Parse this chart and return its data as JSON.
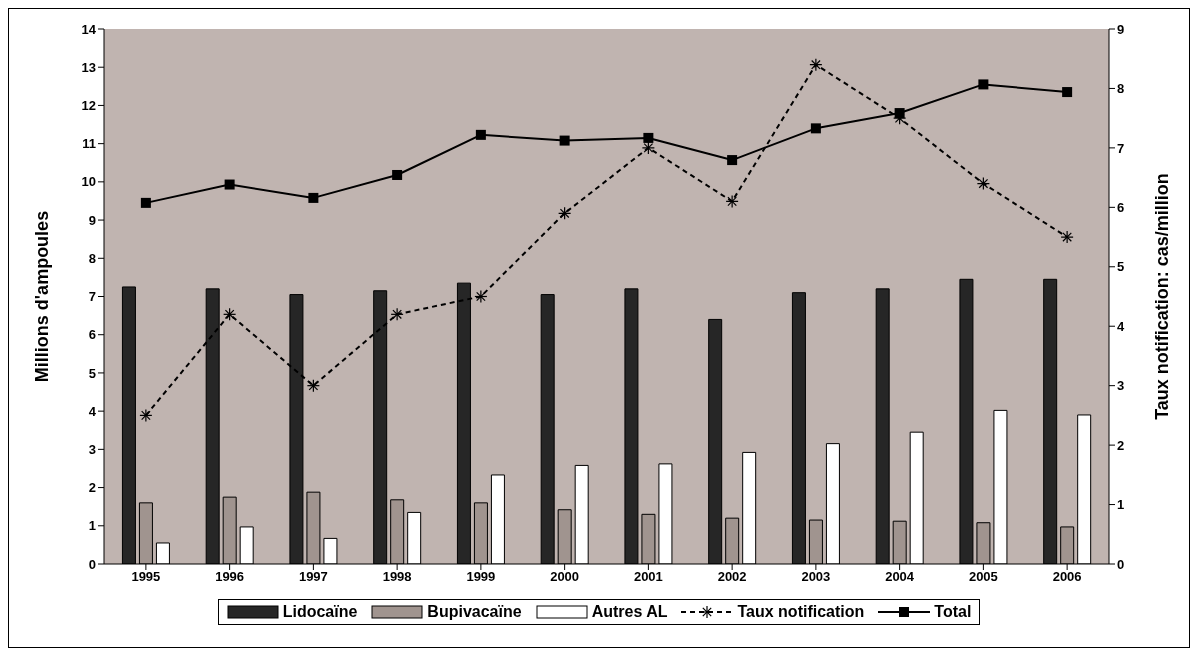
{
  "chart_data": {
    "type": "bar",
    "categories": [
      "1995",
      "1996",
      "1997",
      "1998",
      "1999",
      "2000",
      "2001",
      "2002",
      "2003",
      "2004",
      "2005",
      "2006"
    ],
    "ylabel": "Millions d'ampoules",
    "y2label": "Taux notification: cas/million",
    "ylim": [
      0,
      14
    ],
    "yticks": [
      0,
      1,
      2,
      3,
      4,
      5,
      6,
      7,
      8,
      9,
      10,
      11,
      12,
      13,
      14
    ],
    "y2lim": [
      0,
      9
    ],
    "y2ticks": [
      0,
      1,
      2,
      3,
      4,
      5,
      6,
      7,
      8,
      9
    ],
    "grid": false,
    "legend": "bottom",
    "series": [
      {
        "name": "Lidocaïne",
        "color": "#262626",
        "values": [
          7.25,
          7.2,
          7.05,
          7.15,
          7.35,
          7.05,
          7.2,
          6.4,
          7.1,
          7.2,
          7.45,
          7.45
        ]
      },
      {
        "name": "Bupivacaïne",
        "color": "#a0948f",
        "values": [
          1.6,
          1.75,
          1.88,
          1.68,
          1.6,
          1.42,
          1.3,
          1.2,
          1.15,
          1.12,
          1.08,
          0.97
        ]
      },
      {
        "name": "Autres AL",
        "color": "#ffffff",
        "values": [
          0.55,
          0.97,
          0.67,
          1.35,
          2.33,
          2.58,
          2.62,
          2.92,
          3.15,
          3.45,
          4.02,
          3.9
        ]
      },
      {
        "name": "Taux notification",
        "type": "line",
        "axis": "y2",
        "color": "#000000",
        "marker": "cross",
        "line_style": "dashed",
        "values": [
          2.5,
          4.2,
          3.0,
          4.2,
          4.5,
          5.9,
          7.0,
          6.1,
          8.4,
          7.5,
          6.4,
          5.5
        ]
      },
      {
        "name": "Total",
        "type": "line",
        "color": "#000000",
        "marker": "square",
        "line_style": "solid",
        "values": [
          9.45,
          9.93,
          9.58,
          10.18,
          11.23,
          11.08,
          11.15,
          10.57,
          11.4,
          11.8,
          12.55,
          12.35
        ]
      }
    ]
  }
}
